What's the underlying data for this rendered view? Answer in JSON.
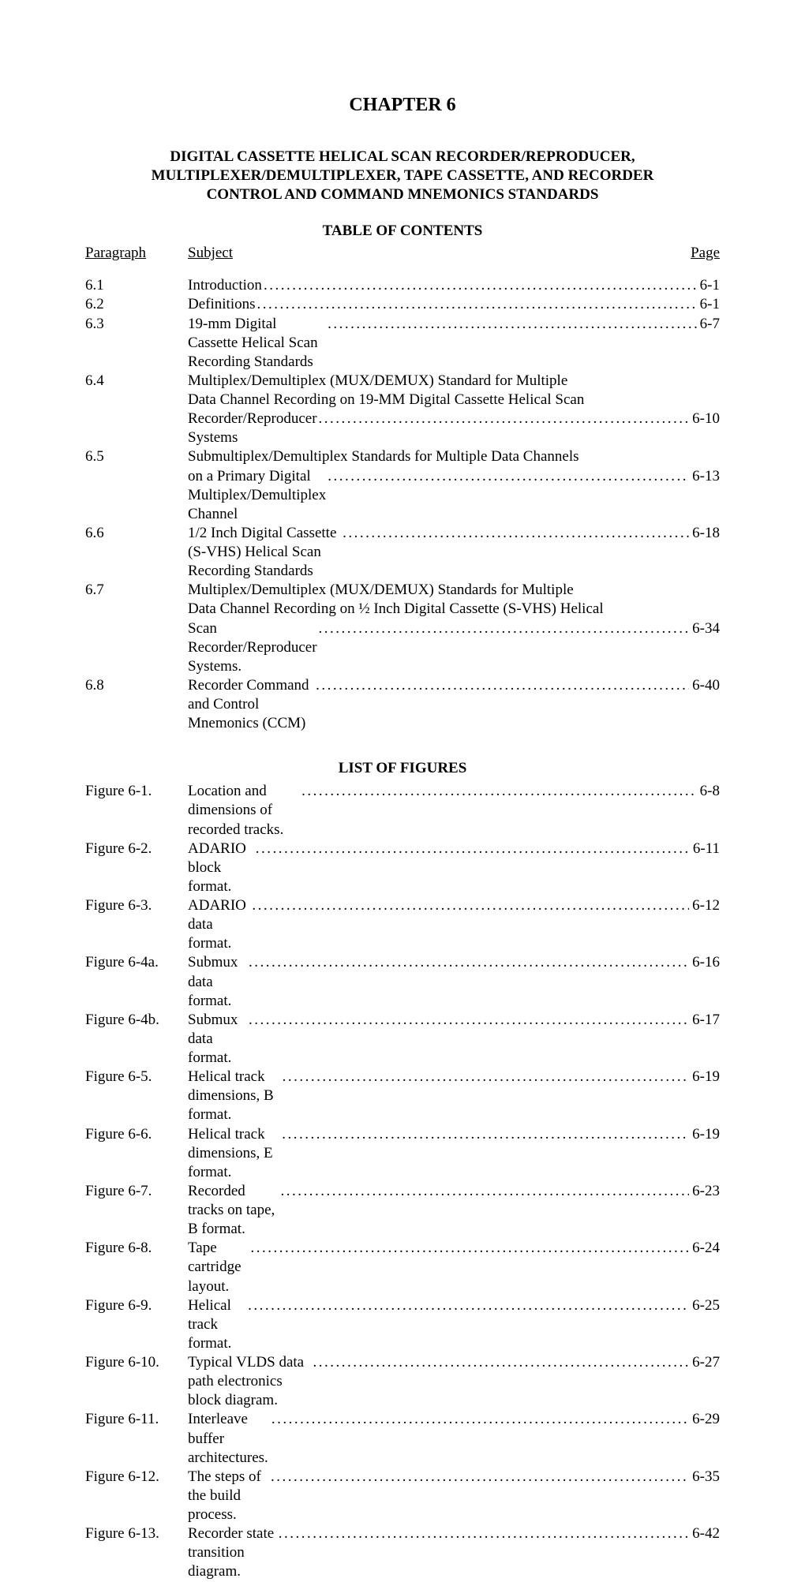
{
  "chapter_title": "CHAPTER 6",
  "chapter_subtitle_lines": [
    "DIGITAL CASSETTE HELICAL SCAN RECORDER/REPRODUCER,",
    "MULTIPLEXER/DEMULTIPLEXER, TAPE CASSETTE, AND RECORDER",
    "CONTROL AND COMMAND MNEMONICS STANDARDS"
  ],
  "toc_heading": "TABLE OF CONTENTS",
  "column_para": "Paragraph",
  "column_subject": "Subject",
  "column_page": "Page",
  "contents": [
    {
      "para": "6.1",
      "lines": [
        "Introduction"
      ],
      "page": "6-1"
    },
    {
      "para": "6.2",
      "lines": [
        "Definitions "
      ],
      "page": "6-1"
    },
    {
      "para": "6.3",
      "lines": [
        "19-mm Digital Cassette Helical Scan Recording Standards"
      ],
      "page": "6-7"
    },
    {
      "para": "6.4",
      "lines": [
        "Multiplex/Demultiplex (MUX/DEMUX) Standard for Multiple",
        "Data Channel Recording on 19-MM Digital Cassette Helical Scan",
        "Recorder/Reproducer Systems"
      ],
      "page": "6-10"
    },
    {
      "para": "6.5",
      "lines": [
        "Submultiplex/Demultiplex Standards for Multiple Data Channels",
        "on a Primary Digital Multiplex/Demultiplex Channel "
      ],
      "page": "6-13"
    },
    {
      "para": "6.6",
      "lines": [
        "1/2 Inch Digital Cassette (S-VHS) Helical Scan Recording Standards"
      ],
      "page": "6-18"
    },
    {
      "para": "6.7",
      "lines": [
        "Multiplex/Demultiplex (MUX/DEMUX) Standards for Multiple",
        "Data Channel Recording on ½ Inch Digital Cassette (S-VHS) Helical",
        "Scan Recorder/Reproducer Systems."
      ],
      "page": "6-34"
    },
    {
      "para": "6.8",
      "lines": [
        "Recorder Command and Control Mnemonics (CCM)"
      ],
      "page": "6-40"
    }
  ],
  "figures_heading": "LIST OF FIGURES",
  "figures": [
    {
      "para": "Figure 6-1.",
      "lines": [
        "Location and dimensions of recorded tracks. "
      ],
      "page": "6-8"
    },
    {
      "para": "Figure 6-2.",
      "lines": [
        "ADARIO block format. "
      ],
      "page": "6-11"
    },
    {
      "para": "Figure 6-3.",
      "lines": [
        "ADARIO data format."
      ],
      "page": "6-12"
    },
    {
      "para": "Figure 6-4a.",
      "lines": [
        "Submux data format."
      ],
      "page": "6-16"
    },
    {
      "para": "Figure 6-4b.",
      "lines": [
        "Submux data format."
      ],
      "page": "6-17"
    },
    {
      "para": "Figure 6-5.",
      "lines": [
        "Helical track dimensions, B format. "
      ],
      "page": "6-19"
    },
    {
      "para": "Figure 6-6.",
      "lines": [
        "Helical track dimensions, E format."
      ],
      "page": "6-19"
    },
    {
      "para": "Figure 6-7.",
      "lines": [
        "Recorded tracks on tape, B format."
      ],
      "page": "6-23"
    },
    {
      "para": "Figure 6-8.",
      "lines": [
        "Tape cartridge layout. "
      ],
      "page": "6-24"
    },
    {
      "para": "Figure 6-9.",
      "lines": [
        "Helical track format. "
      ],
      "page": "6-25"
    },
    {
      "para": "Figure 6-10.",
      "lines": [
        "Typical VLDS data path electronics block diagram."
      ],
      "page": "6-27"
    },
    {
      "para": "Figure 6-11.",
      "lines": [
        "Interleave buffer architectures. "
      ],
      "page": "6-29"
    },
    {
      "para": "Figure 6-12.",
      "lines": [
        "The steps of the build process."
      ],
      "page": "6-35"
    },
    {
      "para": "Figure 6-13.",
      "lines": [
        "Recorder state transition diagram. "
      ],
      "page": "6-42"
    }
  ]
}
